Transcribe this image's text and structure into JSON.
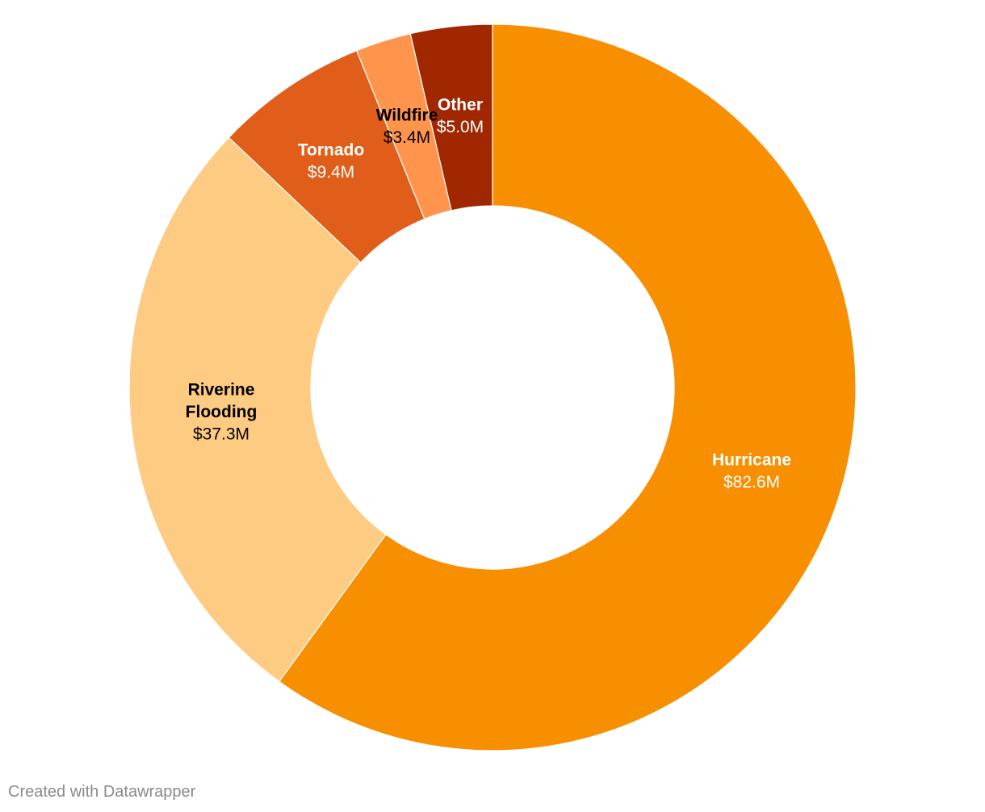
{
  "chart_data": {
    "type": "pie",
    "variant": "donut",
    "slices": [
      {
        "label": "Hurricane",
        "value": 82.6,
        "value_label": "$82.6M",
        "color": "#f78f00",
        "text_color": "#ffffff"
      },
      {
        "label": "Riverine Flooding",
        "value": 37.3,
        "value_label": "$37.3M",
        "color": "#fdcb82",
        "text_color": "#000000"
      },
      {
        "label": "Tornado",
        "value": 9.4,
        "value_label": "$9.4M",
        "color": "#e05e1a",
        "text_color": "#ffffff"
      },
      {
        "label": "Wildfire",
        "value": 3.4,
        "value_label": "$3.4M",
        "color": "#ff944d",
        "text_color": "#000000"
      },
      {
        "label": "Other",
        "value": 5.0,
        "value_label": "$5.0M",
        "color": "#a02700",
        "text_color": "#ffffff"
      }
    ]
  },
  "footer": {
    "credit": "Created with Datawrapper"
  }
}
